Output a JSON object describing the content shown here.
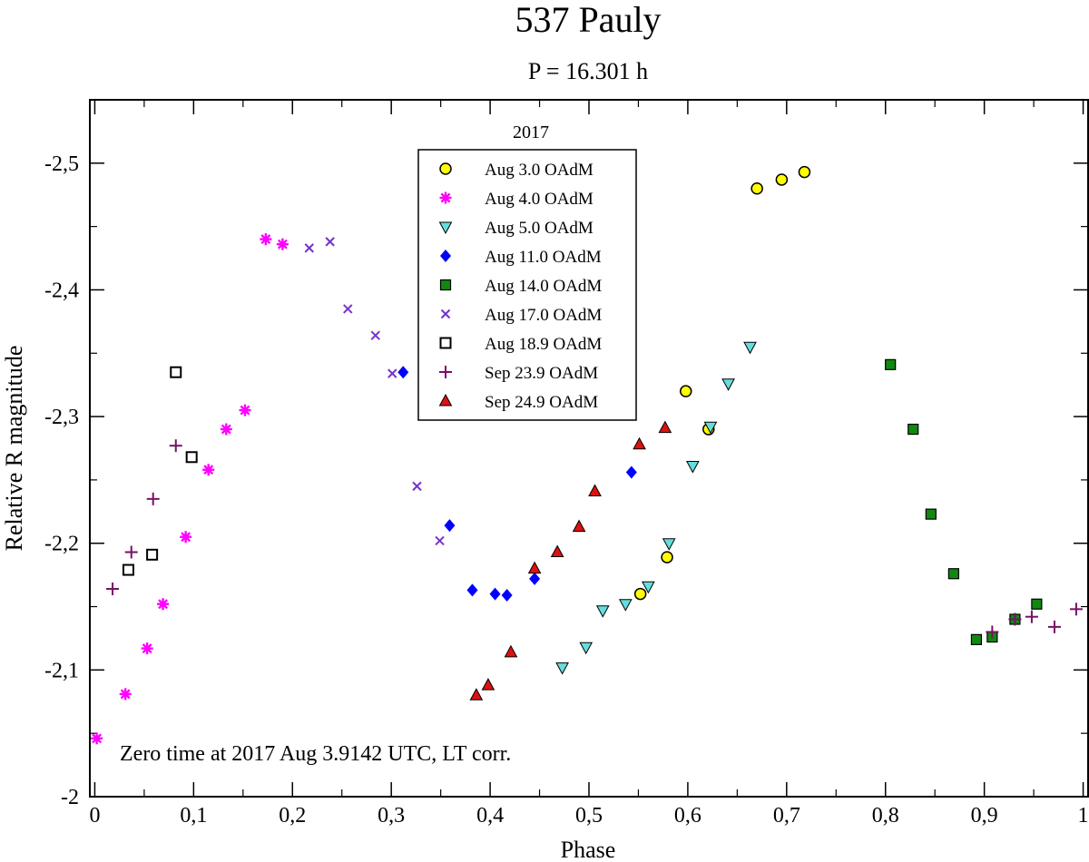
{
  "chart_data": {
    "type": "scatter",
    "title": "537 Pauly",
    "subtitle": "P = 16.301 h",
    "xlabel": "Phase",
    "ylabel": "Relative R magnitude",
    "xlim": [
      -0.005,
      1.005
    ],
    "ylim": [
      -2.0,
      -2.55
    ],
    "x_ticks": [
      0,
      0.1,
      0.2,
      0.3,
      0.4,
      0.5,
      0.6,
      0.7,
      0.8,
      0.9,
      1.0
    ],
    "x_tick_labels": [
      "0",
      "0,1",
      "0,2",
      "0,3",
      "0,4",
      "0,5",
      "0,6",
      "0,7",
      "0,8",
      "0,9",
      "1"
    ],
    "y_ticks": [
      -2.0,
      -2.1,
      -2.2,
      -2.3,
      -2.4,
      -2.5
    ],
    "y_tick_labels": [
      "-2",
      "-2,1",
      "-2,2",
      "-2,3",
      "-2,4",
      "-2,5"
    ],
    "annotation": "Zero time at 2017 Aug 3.9142 UTC,  LT corr.",
    "legend_title": "2017",
    "legend_position": "top-center",
    "series": [
      {
        "name": "Aug 3.0 OAdM",
        "marker": "circle",
        "color": "#ffff00",
        "x": [
          0.552,
          0.579,
          0.598,
          0.621,
          0.67,
          0.695,
          0.718
        ],
        "y": [
          -2.16,
          -2.189,
          -2.32,
          -2.29,
          -2.48,
          -2.487,
          -2.493
        ]
      },
      {
        "name": "Aug 4.0 OAdM",
        "marker": "asterisk",
        "color": "#ff00ff",
        "x": [
          0.002,
          0.031,
          0.053,
          0.069,
          0.092,
          0.115,
          0.133,
          0.152,
          0.173,
          0.19
        ],
        "y": [
          -2.046,
          -2.081,
          -2.117,
          -2.152,
          -2.205,
          -2.258,
          -2.29,
          -2.305,
          -2.44,
          -2.436
        ]
      },
      {
        "name": "Aug 5.0 OAdM",
        "marker": "triangle-down",
        "color": "#66dddd",
        "x": [
          0.473,
          0.497,
          0.514,
          0.537,
          0.56,
          0.581,
          0.605,
          0.623,
          0.641,
          0.663
        ],
        "y": [
          -2.102,
          -2.118,
          -2.147,
          -2.152,
          -2.166,
          -2.2,
          -2.261,
          -2.292,
          -2.326,
          -2.355
        ]
      },
      {
        "name": "Aug 11.0 OAdM",
        "marker": "diamond",
        "color": "#0000ff",
        "x": [
          0.312,
          0.359,
          0.382,
          0.405,
          0.417,
          0.445,
          0.543
        ],
        "y": [
          -2.335,
          -2.214,
          -2.163,
          -2.16,
          -2.159,
          -2.172,
          -2.256
        ]
      },
      {
        "name": "Aug 14.0 OAdM",
        "marker": "square",
        "color": "#118811",
        "x": [
          0.805,
          0.828,
          0.846,
          0.869,
          0.892,
          0.908,
          0.931,
          0.953
        ],
        "y": [
          -2.341,
          -2.29,
          -2.223,
          -2.176,
          -2.124,
          -2.126,
          -2.14,
          -2.152
        ]
      },
      {
        "name": "Aug 17.0 OAdM",
        "marker": "x",
        "color": "#7733cc",
        "x": [
          0.217,
          0.238,
          0.256,
          0.284,
          0.301,
          0.326,
          0.349
        ],
        "y": [
          -2.433,
          -2.438,
          -2.385,
          -2.364,
          -2.334,
          -2.245,
          -2.202
        ]
      },
      {
        "name": "Aug 18.9 OAdM",
        "marker": "square-open",
        "color": "#ffffff",
        "x": [
          0.034,
          0.058,
          0.082,
          0.098
        ],
        "y": [
          -2.179,
          -2.191,
          -2.335,
          -2.268
        ]
      },
      {
        "name": "Sep 23.9 OAdM",
        "marker": "plus",
        "color": "#771166",
        "x": [
          0.018,
          0.037,
          0.059,
          0.082,
          0.908,
          0.931,
          0.948,
          0.971,
          0.993
        ],
        "y": [
          -2.164,
          -2.193,
          -2.235,
          -2.277,
          -2.13,
          -2.14,
          -2.142,
          -2.134,
          -2.148
        ]
      },
      {
        "name": "Sep 24.9 OAdM",
        "marker": "triangle-up",
        "color": "#dd1111",
        "x": [
          0.386,
          0.398,
          0.421,
          0.445,
          0.468,
          0.49,
          0.506,
          0.551,
          0.577
        ],
        "y": [
          -2.08,
          -2.088,
          -2.114,
          -2.18,
          -2.193,
          -2.213,
          -2.241,
          -2.278,
          -2.291
        ]
      }
    ]
  }
}
